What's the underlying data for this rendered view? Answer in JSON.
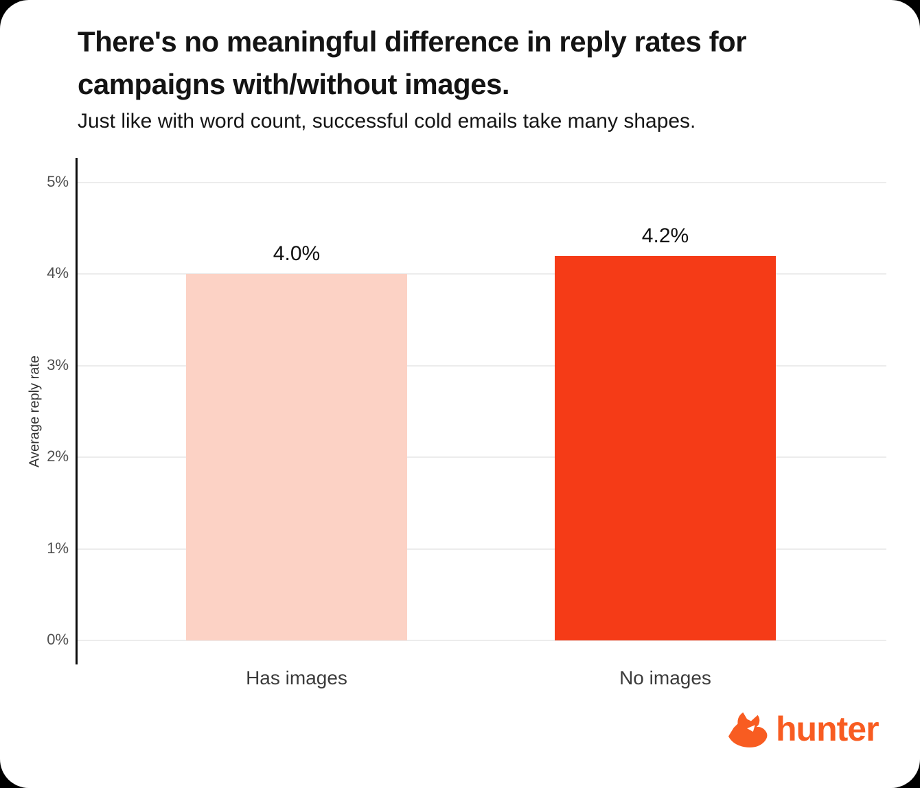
{
  "title_line1": "There's no meaningful difference in reply rates for",
  "title_line2": "campaigns with/without images.",
  "subtitle": "Just like with word count, successful cold emails take many shapes.",
  "chart_data": {
    "type": "bar",
    "categories": [
      "Has images",
      "No images"
    ],
    "values": [
      4.0,
      4.2
    ],
    "value_labels": [
      "4.0%",
      "4.2%"
    ],
    "title": "There's no meaningful difference in reply rates for campaigns with/without images.",
    "xlabel": "",
    "ylabel": "Average reply rate",
    "ylim": [
      0,
      5.3
    ],
    "yticks": [
      0,
      1,
      2,
      3,
      4,
      5
    ],
    "ytick_labels": [
      "0%",
      "1%",
      "2%",
      "3%",
      "4%",
      "5%"
    ],
    "grid": true,
    "legend": false,
    "bar_colors": [
      "#fcd2c5",
      "#f53b17"
    ]
  },
  "colors": {
    "page_background": "#000000",
    "card_background": "#ffffff",
    "axis_line": "#0c0c0c",
    "gridline": "#ececec",
    "title_text": "#141414",
    "tick_text": "#4f4f4f",
    "category_text": "#3c3c3c",
    "accent_pink": "#fcd2c5",
    "accent_red": "#f53b17",
    "logo_orange": "#f85c21"
  },
  "branding": {
    "logo_text": "hunter",
    "logo_icon": "dog-head-icon"
  }
}
